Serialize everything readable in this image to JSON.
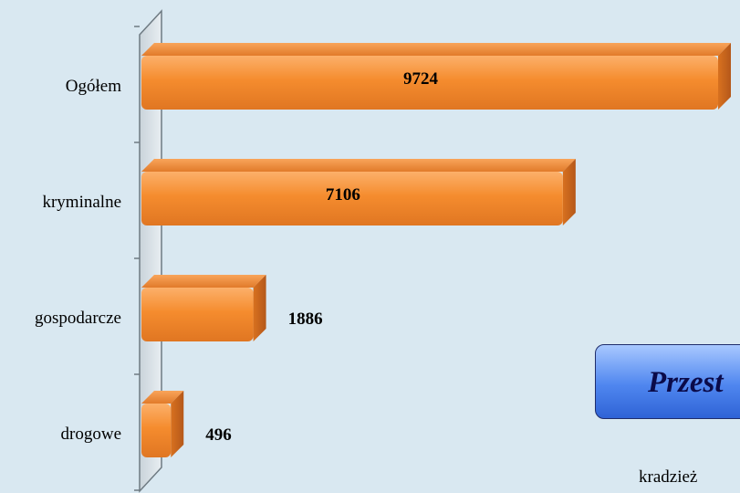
{
  "chart_data": {
    "type": "bar",
    "orientation": "horizontal",
    "categories": [
      "Ogółem",
      "kryminalne",
      "gospodarcze",
      "drogowe"
    ],
    "values": [
      9724,
      7106,
      1886,
      496
    ],
    "value_labels": [
      "9724",
      "7106",
      "1886",
      "496"
    ],
    "xlim": [
      0,
      10000
    ],
    "grid": false,
    "bar_color": "#f58c2e",
    "bar_dark": "#c8651a",
    "bar_light": "#fcb06a"
  },
  "callout": {
    "text": "Przest"
  },
  "note": {
    "text": "kradzież"
  }
}
